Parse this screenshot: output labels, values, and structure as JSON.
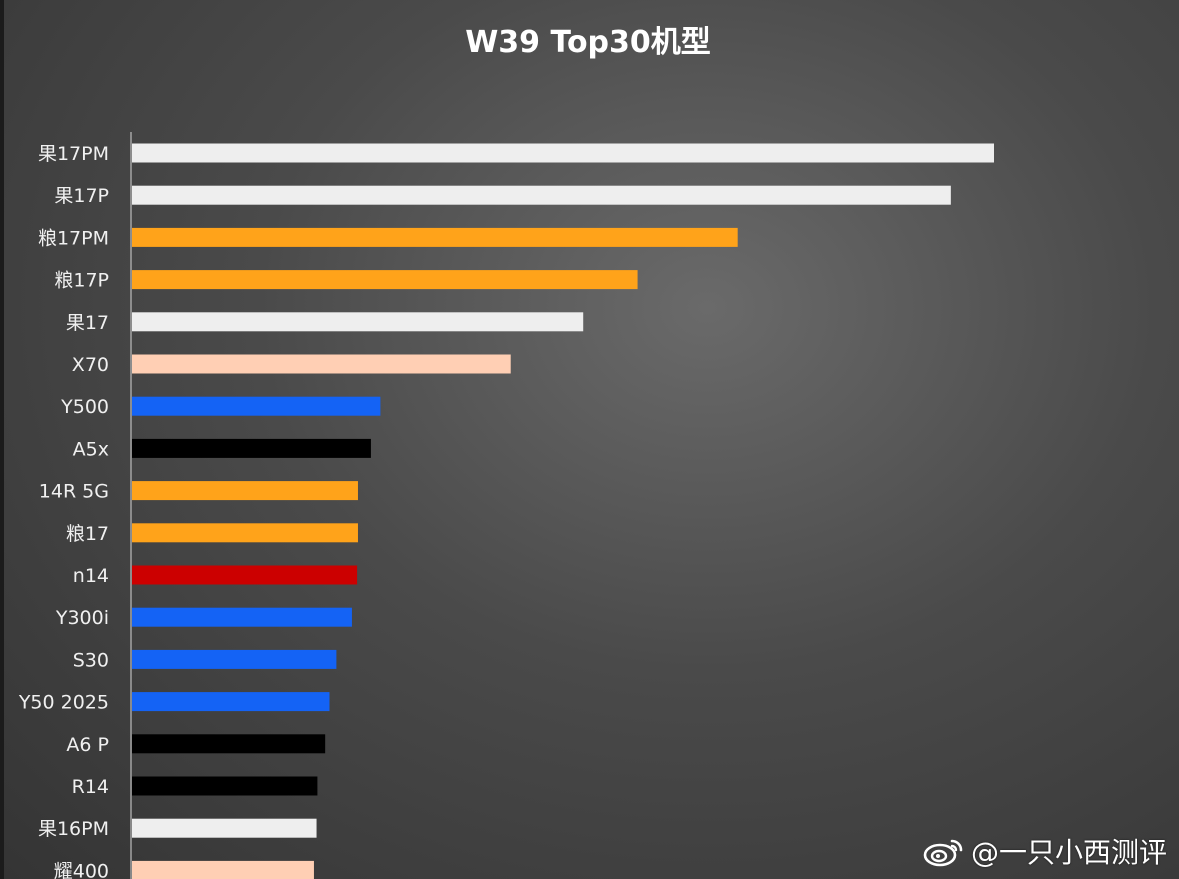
{
  "chart_data": {
    "type": "bar",
    "orientation": "horizontal",
    "title": "W39 Top30机型",
    "xlabel": "",
    "ylabel": "",
    "grid": false,
    "legend": "none",
    "xlim": [
      0,
      100
    ],
    "categories": [
      "果17PM",
      "果17P",
      "粮17PM",
      "粮17P",
      "果17",
      "X70",
      "Y500",
      "A5x",
      "14R 5G",
      "粮17",
      "n14",
      "Y300i",
      "S30",
      "Y50 2025",
      "A6 P",
      "R14",
      "果16PM",
      "耀400"
    ],
    "values": [
      100,
      95,
      70.3,
      58.7,
      52.4,
      44,
      28.9,
      27.8,
      26.3,
      26.3,
      26.2,
      25.6,
      23.8,
      23,
      22.5,
      21.6,
      21.5,
      21.2
    ],
    "colors": [
      "#eeeeee",
      "#eeeeee",
      "#ffa31a",
      "#ffa31a",
      "#eeeeee",
      "#ffcfb4",
      "#1463f5",
      "#000000",
      "#ffa31a",
      "#ffa31a",
      "#cc0000",
      "#1463f5",
      "#1463f5",
      "#1463f5",
      "#000000",
      "#000000",
      "#eeeeee",
      "#ffcfb4"
    ]
  },
  "watermark": {
    "text": "@一只小西测评",
    "icon": "weibo-icon"
  }
}
